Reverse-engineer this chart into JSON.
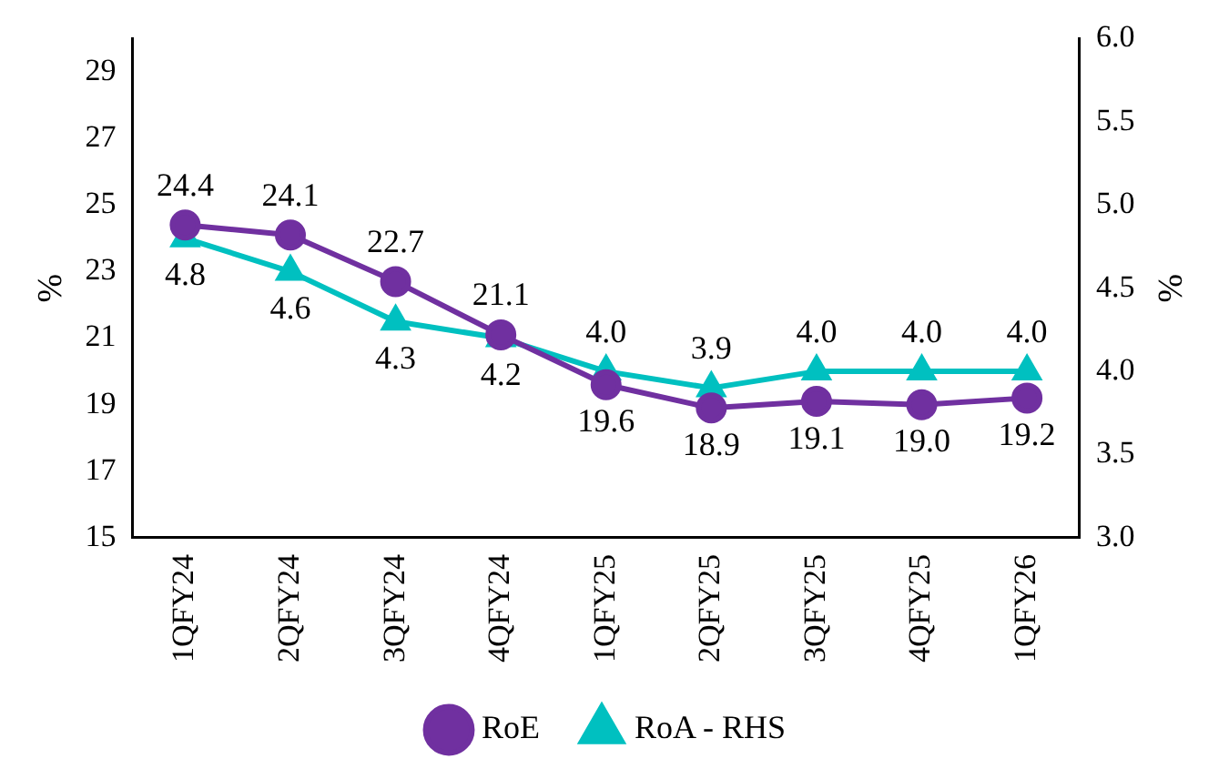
{
  "chart_data": {
    "type": "line",
    "ylabel": "%",
    "y2label": "%",
    "categories": [
      "1QFY24",
      "2QFY24",
      "3QFY24",
      "4QFY24",
      "1QFY25",
      "2QFY25",
      "3QFY25",
      "4QFY25",
      "1QFY26"
    ],
    "series": [
      {
        "name": "RoE",
        "color": "#7030a0",
        "marker": "circle",
        "values": [
          24.4,
          24.1,
          22.7,
          21.1,
          19.6,
          18.9,
          19.1,
          19.0,
          19.2
        ],
        "value_labels": [
          "24.4",
          "24.1",
          "22.7",
          "21.1",
          "19.6",
          "18.9",
          "19.1",
          "19.0",
          "19.2"
        ]
      },
      {
        "name": "RoA - RHS",
        "color": "#00c0c0",
        "marker": "triangle",
        "axis": "y2",
        "values": [
          4.8,
          4.6,
          4.3,
          4.2,
          4.0,
          3.9,
          4.0,
          4.0,
          4.0
        ],
        "value_labels": [
          "4.8",
          "4.6",
          "4.3",
          "4.2",
          "4.0",
          "3.9",
          "4.0",
          "4.0",
          "4.0"
        ]
      }
    ],
    "ylim": [
      15,
      30
    ],
    "yticks": [
      15,
      17,
      19,
      21,
      23,
      25,
      27,
      29
    ],
    "y2lim": [
      3,
      6
    ],
    "y2ticks": [
      {
        "value": 3,
        "label": "3.0"
      },
      {
        "value": 3.5,
        "label": "3.5"
      },
      {
        "value": 4,
        "label": "4.0"
      },
      {
        "value": 4.5,
        "label": "4.5"
      },
      {
        "value": 5,
        "label": "5.0"
      },
      {
        "value": 5.5,
        "label": "5.5"
      },
      {
        "value": 6,
        "label": "6.0"
      }
    ],
    "grid": false,
    "legend": "bottom",
    "line_style": "solid"
  }
}
